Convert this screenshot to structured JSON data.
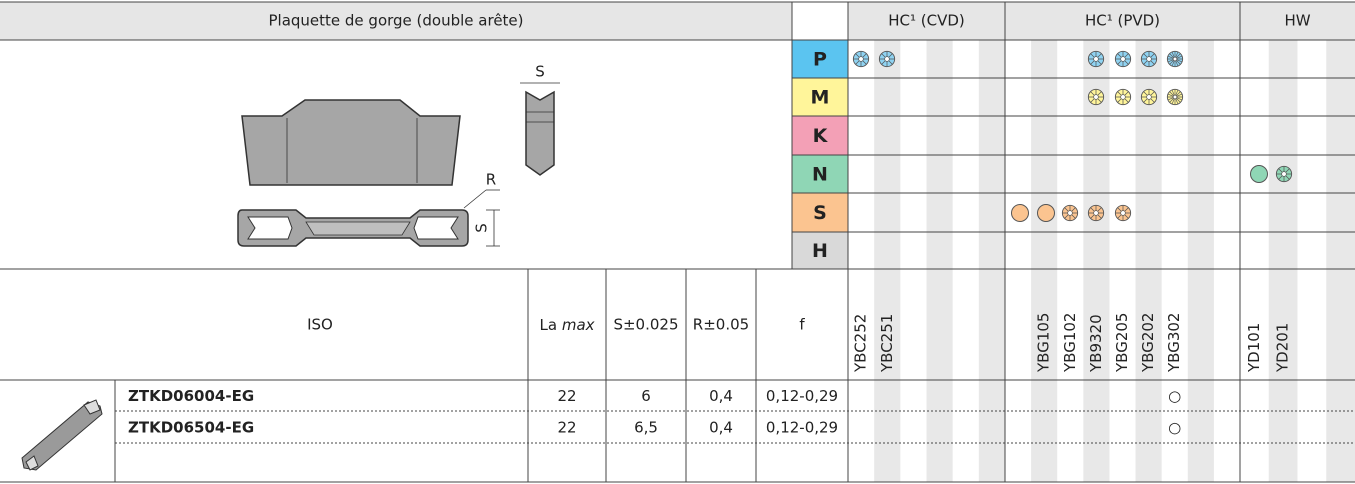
{
  "header": {
    "title": "Plaquette de gorge (double arête)"
  },
  "drawing": {
    "labels": [
      "S",
      "R",
      "S"
    ]
  },
  "materials": [
    "P",
    "M",
    "K",
    "N",
    "S",
    "H"
  ],
  "grade_groups": [
    {
      "name": "HC¹ (CVD)",
      "grades": [
        "YBC252",
        "YBC251",
        null,
        null,
        null,
        null
      ]
    },
    {
      "name": "HC¹ (PVD)",
      "grades": [
        null,
        "YBG105",
        "YBG102",
        "YB9320",
        "YBG205",
        "YBG202",
        "YBG302",
        null,
        null
      ]
    },
    {
      "name": "HW",
      "grades": [
        "YD101",
        "YD201",
        null,
        null
      ]
    }
  ],
  "columns": {
    "iso": "ISO",
    "la": "La",
    "max": "max",
    "s": "S±0.025",
    "r": "R±0.05",
    "f": "f"
  },
  "rows": [
    {
      "iso": "ZTKD06004-EG",
      "la_max": "22",
      "s": "6",
      "r": "0,4",
      "f": "0,12-0,29",
      "marks": [
        {
          "grade": "YBG302",
          "symbol": "○"
        }
      ]
    },
    {
      "iso": "ZTKD06504-EG",
      "la_max": "22",
      "s": "6,5",
      "r": "0,4",
      "f": "0,12-0,29",
      "marks": [
        {
          "grade": "YBG302",
          "symbol": "○"
        }
      ]
    }
  ]
}
